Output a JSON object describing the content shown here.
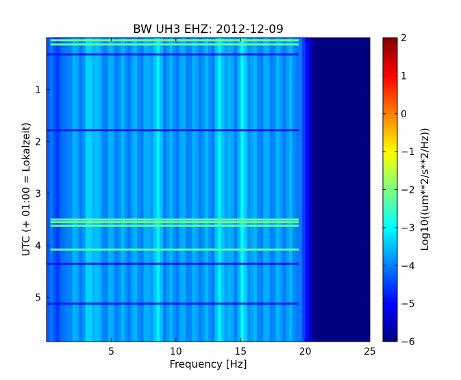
{
  "chart_data": {
    "type": "heatmap",
    "title": "BW UH3 EHZ: 2012-12-09",
    "xlabel": "Frequency [Hz]",
    "ylabel": "UTC (+ 01:00 = Lokalzeit)",
    "xlim": [
      0,
      25
    ],
    "ylim": [
      5.85,
      0
    ],
    "xticks": [
      5,
      10,
      15,
      20,
      25
    ],
    "yticks": [
      1,
      2,
      3,
      4,
      5
    ],
    "colorbar": {
      "label": "Log10((um**2/s**2/Hz))",
      "range": [
        -6,
        2
      ],
      "ticks": [
        2,
        1,
        0,
        -1,
        -2,
        -3,
        -4,
        -5,
        -6
      ],
      "colormap": "jet"
    },
    "colors": {
      "low": "#00007f",
      "mid": "#00bfff",
      "high": "#7f0000"
    },
    "features": {
      "background_low_freq_level": -3.8,
      "background_high_freq_level": -6.0,
      "high_freq_cutoff_hz": 19.5,
      "vertical_bands_hz": [
        3.5,
        8.5,
        13.5,
        15.2
      ],
      "event_times_utc": [
        0.05,
        0.13,
        3.5,
        3.55,
        3.62,
        4.08
      ]
    }
  }
}
